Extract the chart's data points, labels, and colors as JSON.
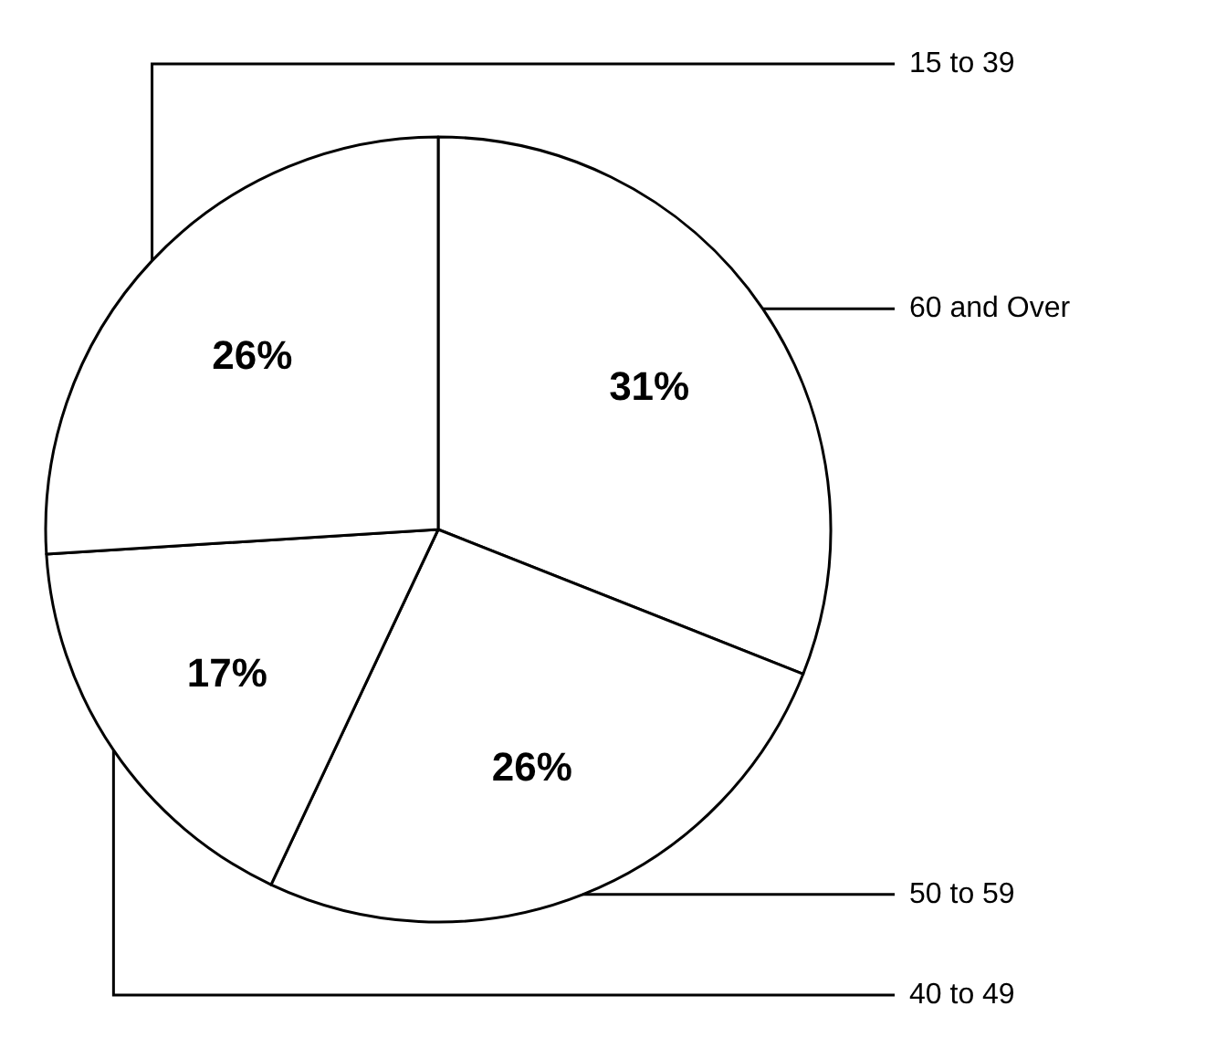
{
  "chart_data": {
    "type": "pie",
    "categories": [
      "60 and Over",
      "50 to 59",
      "40 to 49",
      "15 to 39"
    ],
    "values": [
      31,
      26,
      17,
      26
    ],
    "value_labels": [
      "31%",
      "26%",
      "17%",
      "26%"
    ],
    "colors": [
      "#ffffff",
      "#ffffff",
      "#ffffff",
      "#ffffff"
    ],
    "legend": false
  }
}
